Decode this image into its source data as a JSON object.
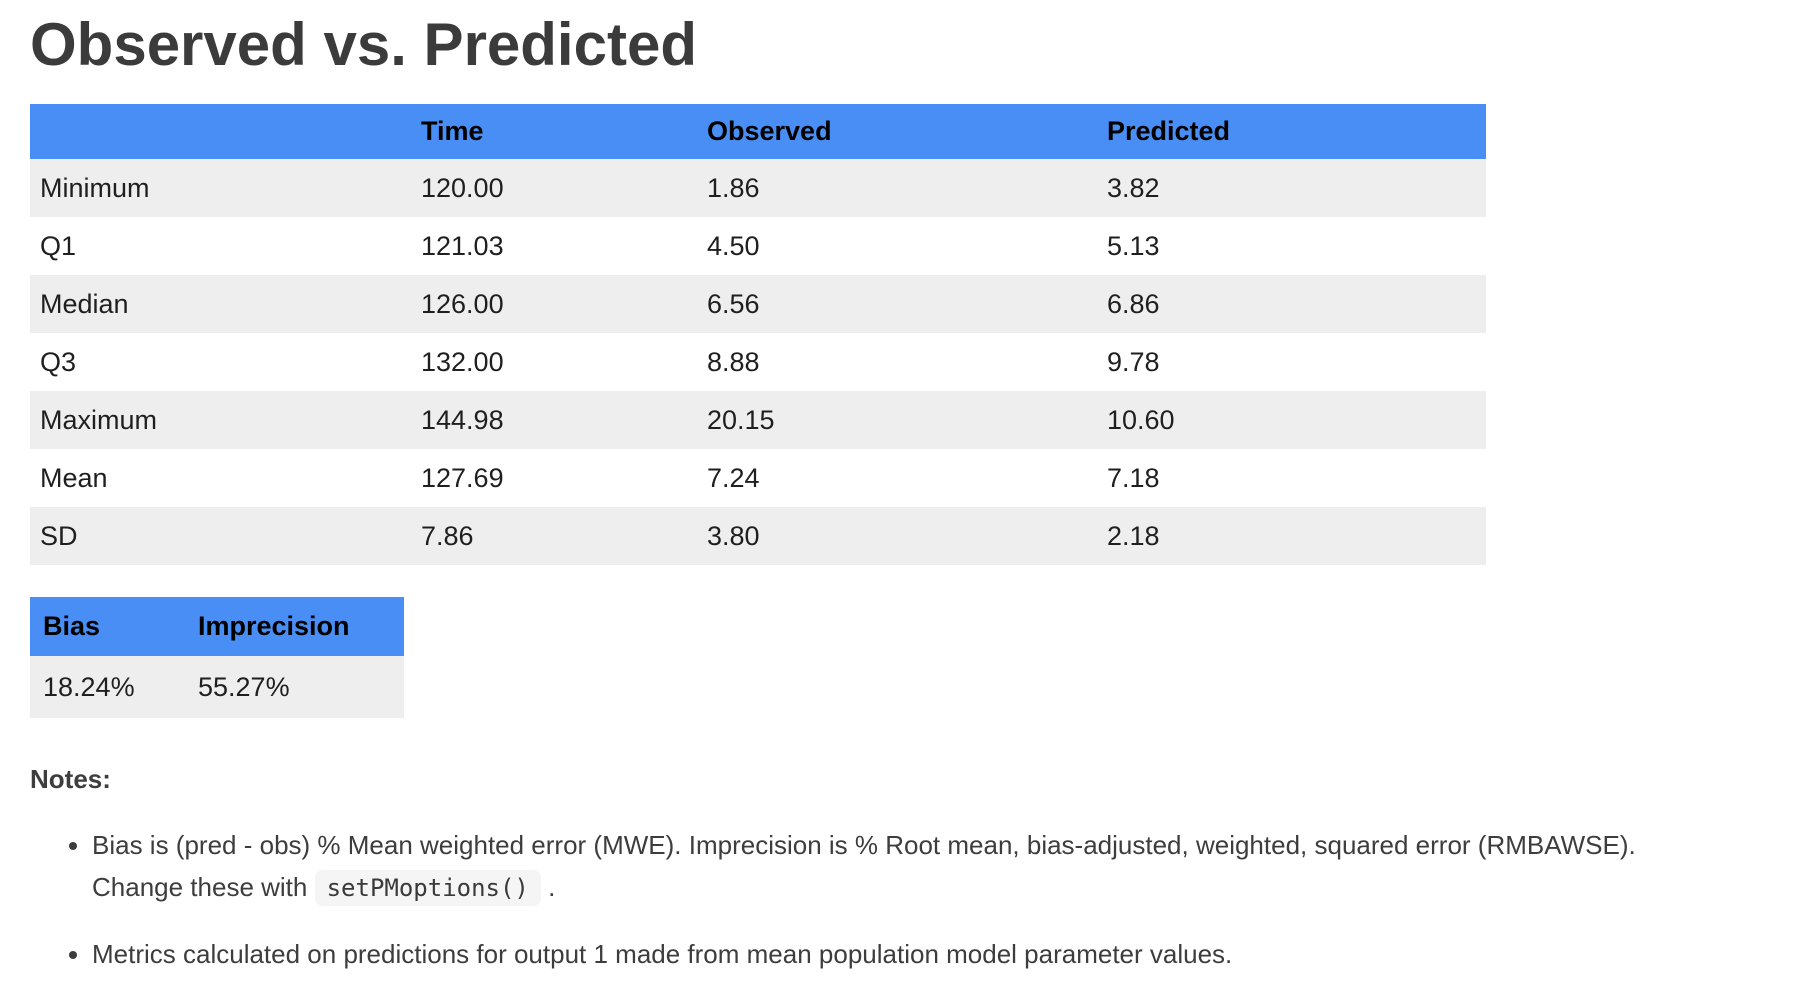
{
  "page": {
    "title": "Observed vs. Predicted"
  },
  "summary_table": {
    "header": {
      "metric": "",
      "time": "Time",
      "observed": "Observed",
      "predicted": "Predicted"
    },
    "rows": [
      {
        "label": "Minimum",
        "time": "120.00",
        "observed": "1.86",
        "predicted": "3.82"
      },
      {
        "label": "Q1",
        "time": "121.03",
        "observed": "4.50",
        "predicted": "5.13"
      },
      {
        "label": "Median",
        "time": "126.00",
        "observed": "6.56",
        "predicted": "6.86"
      },
      {
        "label": "Q3",
        "time": "132.00",
        "observed": "8.88",
        "predicted": "9.78"
      },
      {
        "label": "Maximum",
        "time": "144.98",
        "observed": "20.15",
        "predicted": "10.60"
      },
      {
        "label": "Mean",
        "time": "127.69",
        "observed": "7.24",
        "predicted": "7.18"
      },
      {
        "label": "SD",
        "time": "7.86",
        "observed": "3.80",
        "predicted": "2.18"
      }
    ]
  },
  "metrics_table": {
    "header": {
      "bias": "Bias",
      "imprecision": "Imprecision"
    },
    "row": {
      "bias": "18.24%",
      "imprecision": "55.27%"
    }
  },
  "notes": {
    "heading": "Notes:",
    "bullet1": {
      "line1": "Bias is (pred - obs) % Mean weighted error (MWE). Imprecision is % Root mean, bias-adjusted, weighted, squared error (RMBAWSE).",
      "line2": "Change these with ",
      "code": "setPMoptions()",
      "after_code": " ."
    },
    "bullet2": {
      "text": "Metrics calculated on predictions for output 1 made from mean population model parameter values."
    }
  },
  "colors": {
    "table_header_bg": "#488ef5",
    "row_stripe_bg": "#eeeeee",
    "code_chip_bg": "#f5f5f5",
    "title_text": "#3b3b3b",
    "notes_text": "#3d3d3d"
  }
}
